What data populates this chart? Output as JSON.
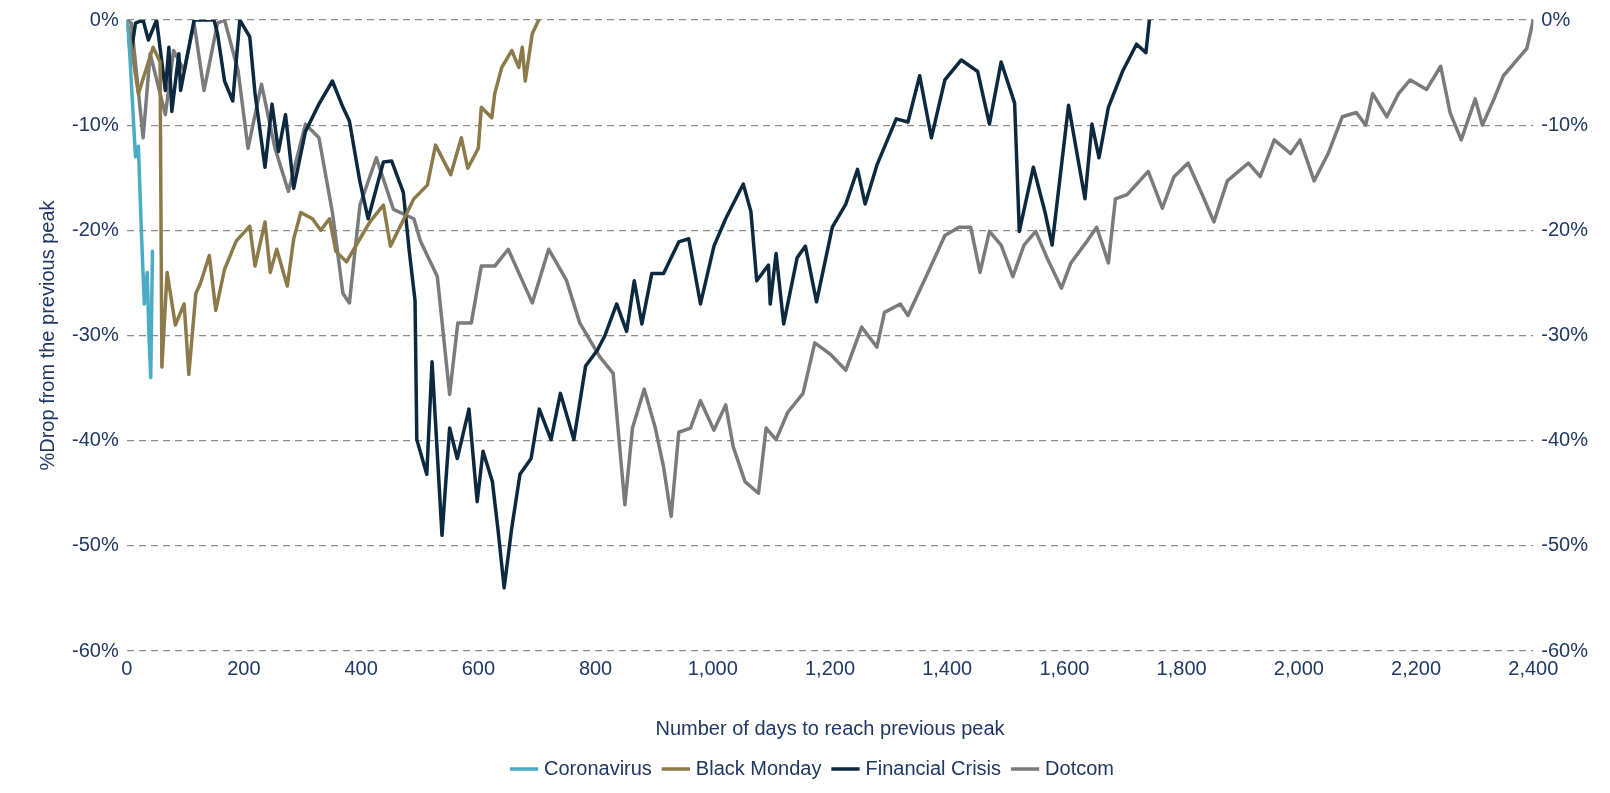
{
  "chart_data": {
    "type": "line",
    "xlabel": "Number of days to reach previous peak",
    "ylabel": "%Drop from the previous peak",
    "xlim": [
      0,
      2400
    ],
    "xticks": [
      0,
      200,
      400,
      600,
      800,
      {
        "value": 1000,
        "label": "1,000"
      },
      {
        "value": 1200,
        "label": "1,200"
      },
      {
        "value": 1400,
        "label": "1,400"
      },
      {
        "value": 1600,
        "label": "1,600"
      },
      {
        "value": 1800,
        "label": "1,800"
      },
      {
        "value": 2000,
        "label": "2,000"
      },
      {
        "value": 2200,
        "label": "2,200"
      },
      {
        "value": 2400,
        "label": "2,400"
      }
    ],
    "ylim": [
      -60,
      0
    ],
    "yticks": [
      {
        "value": 0,
        "label": "0%"
      },
      {
        "value": -10,
        "label": "-10%"
      },
      {
        "value": -20,
        "label": "-20%"
      },
      {
        "value": -30,
        "label": "-30%"
      },
      {
        "value": -40,
        "label": "-40%"
      },
      {
        "value": -50,
        "label": "-50%"
      },
      {
        "value": -60,
        "label": "-60%"
      }
    ],
    "y2lim": [
      -60,
      0
    ],
    "y2ticks": [
      {
        "value": 0,
        "label": "0%"
      },
      {
        "value": -10,
        "label": "-10%"
      },
      {
        "value": -20,
        "label": "-20%"
      },
      {
        "value": -30,
        "label": "-30%"
      },
      {
        "value": -40,
        "label": "-40%"
      },
      {
        "value": -50,
        "label": "-50%"
      },
      {
        "value": -60,
        "label": "-60%"
      }
    ],
    "grid": "y",
    "legend": "bottom",
    "marker": "none",
    "line_style": "solid",
    "series": [
      {
        "name": "Coronavirus",
        "color": "#4bacc6",
        "x": [
          0,
          5,
          10,
          15,
          20,
          25,
          30,
          35,
          38,
          41,
          44
        ],
        "values": [
          0,
          -3,
          -8,
          -13,
          -12,
          -20,
          -27,
          -24,
          -30,
          -34,
          -22
        ]
      },
      {
        "name": "Black Monday",
        "color": "#8c7a4a",
        "x": [
          0,
          8,
          20,
          45,
          57,
          60,
          69,
          83,
          98,
          106,
          118,
          126,
          141,
          152,
          167,
          187,
          210,
          219,
          236,
          245,
          256,
          274,
          285,
          297,
          317,
          331,
          346,
          357,
          375,
          398,
          415,
          438,
          450,
          490,
          513,
          527,
          553,
          571,
          582,
          600,
          605,
          623,
          628,
          640,
          657,
          669,
          675,
          680,
          692,
          703
        ],
        "values": [
          0,
          -2.6,
          -7,
          -2.6,
          -4,
          -33,
          -24,
          -29,
          -27,
          -33.7,
          -26,
          -25,
          -22.4,
          -27.6,
          -23.7,
          -21,
          -19.6,
          -23.4,
          -19.2,
          -24,
          -21.8,
          -25.3,
          -20.8,
          -18.3,
          -18.9,
          -20,
          -18.9,
          -22,
          -23,
          -20.8,
          -19.2,
          -17.6,
          -21.5,
          -17,
          -15.7,
          -11.9,
          -14.7,
          -11.2,
          -14.1,
          -12.2,
          -8.3,
          -9.3,
          -7,
          -4.5,
          -2.9,
          -4.5,
          -2.6,
          -5.8,
          -1.3,
          0
        ]
      },
      {
        "name": "Financial Crisis",
        "color": "#0d2940",
        "x": [
          0,
          8,
          15,
          28,
          37,
          51,
          66,
          72,
          77,
          89,
          92,
          115,
          149,
          155,
          167,
          181,
          193,
          210,
          219,
          236,
          248,
          259,
          271,
          285,
          305,
          328,
          351,
          369,
          380,
          398,
          412,
          438,
          452,
          472,
          482,
          492,
          495,
          512,
          521,
          538,
          551,
          564,
          584,
          598,
          608,
          624,
          634,
          644,
          657,
          671,
          690,
          704,
          724,
          740,
          763,
          783,
          803,
          816,
          836,
          853,
          866,
          879,
          896,
          916,
          942,
          959,
          979,
          1002,
          1022,
          1052,
          1065,
          1075,
          1095,
          1098,
          1108,
          1121,
          1144,
          1158,
          1177,
          1204,
          1227,
          1247,
          1260,
          1280,
          1313,
          1333,
          1353,
          1373,
          1396,
          1424,
          1452,
          1472,
          1492,
          1515,
          1523,
          1547,
          1567,
          1579,
          1607,
          1635,
          1647,
          1659,
          1675,
          1699,
          1723,
          1739,
          1745
        ],
        "values": [
          0,
          -3,
          -0.3,
          0,
          -1.9,
          0,
          -6.7,
          -2.6,
          -8.7,
          -3.2,
          -6.7,
          0,
          0,
          -1.3,
          -5.8,
          -7.7,
          0,
          -1.6,
          -7,
          -14,
          -8,
          -12.5,
          -9,
          -16,
          -10.6,
          -8,
          -5.8,
          -8.3,
          -9.6,
          -15.4,
          -18.9,
          -13.5,
          -13.4,
          -16.4,
          -21.9,
          -26.7,
          -39.9,
          -43.2,
          -32.5,
          -49,
          -38.8,
          -41.7,
          -37,
          -45.8,
          -41,
          -43.9,
          -48.7,
          -54,
          -48.3,
          -43.2,
          -41.7,
          -37,
          -39.9,
          -35.5,
          -39.9,
          -32.9,
          -31.4,
          -30,
          -27,
          -29.6,
          -24.8,
          -28.9,
          -24.1,
          -24.1,
          -21.1,
          -20.8,
          -27,
          -21.5,
          -18.9,
          -15.6,
          -18.2,
          -24.8,
          -23.3,
          -27,
          -22.2,
          -28.9,
          -22.6,
          -21.5,
          -26.8,
          -19.7,
          -17.5,
          -14.2,
          -17.5,
          -13.8,
          -9.4,
          -9.7,
          -5.3,
          -11.2,
          -5.7,
          -3.8,
          -4.9,
          -9.9,
          -4,
          -7.9,
          -20.1,
          -14,
          -18.3,
          -21.4,
          -8.1,
          -17,
          -9.9,
          -13.1,
          -8.3,
          -4.9,
          -2.3,
          -3.1,
          0
        ]
      },
      {
        "name": "Dotcom",
        "color": "#7a7b7e",
        "x": [
          0,
          8,
          28,
          40,
          66,
          80,
          98,
          115,
          132,
          155,
          167,
          190,
          207,
          230,
          253,
          276,
          305,
          328,
          351,
          369,
          380,
          398,
          426,
          455,
          490,
          501,
          530,
          551,
          565,
          588,
          605,
          628,
          651,
          692,
          720,
          750,
          773,
          807,
          830,
          850,
          863,
          883,
          902,
          916,
          929,
          942,
          962,
          979,
          1002,
          1022,
          1035,
          1055,
          1078,
          1091,
          1108,
          1128,
          1154,
          1174,
          1201,
          1227,
          1254,
          1280,
          1293,
          1320,
          1333,
          1364,
          1396,
          1420,
          1440,
          1456,
          1472,
          1492,
          1512,
          1531,
          1551,
          1571,
          1595,
          1611,
          1639,
          1655,
          1675,
          1687,
          1707,
          1743,
          1767,
          1787,
          1811,
          1835,
          1855,
          1878,
          1914,
          1934,
          1958,
          1986,
          2002,
          2026,
          2050,
          2074,
          2098,
          2114,
          2126,
          2150,
          2170,
          2190,
          2218,
          2242,
          2258,
          2277,
          2301,
          2313,
          2333,
          2349,
          2369,
          2389,
          2400
        ],
        "values": [
          0,
          -0.3,
          -11.2,
          -3.2,
          -9,
          -2.9,
          -4.8,
          -0.3,
          -6.7,
          -0.3,
          0,
          -4.8,
          -12.2,
          -6.1,
          -12.2,
          -16.3,
          -9.9,
          -11.2,
          -18.3,
          -26,
          -26.9,
          -17.6,
          -13.1,
          -18,
          -18.9,
          -21,
          -24.4,
          -35.6,
          -28.8,
          -28.8,
          -23.4,
          -23.4,
          -21.8,
          -26.9,
          -21.8,
          -24.7,
          -28.8,
          -32,
          -33.6,
          -46.1,
          -38.8,
          -35.1,
          -38.8,
          -42.5,
          -47.2,
          -39.2,
          -38.8,
          -36.2,
          -39,
          -36.6,
          -40.6,
          -43.9,
          -45,
          -38.8,
          -39.9,
          -37.3,
          -35.5,
          -30.7,
          -31.8,
          -33.3,
          -29.2,
          -31.1,
          -27.8,
          -27,
          -28.1,
          -24.4,
          -20.5,
          -19.7,
          -19.7,
          -24,
          -20.1,
          -21.4,
          -24.4,
          -21.4,
          -20.1,
          -22.7,
          -25.5,
          -23.1,
          -21,
          -19.7,
          -23.1,
          -17,
          -16.6,
          -14.4,
          -17.9,
          -14.9,
          -13.6,
          -16.6,
          -19.2,
          -15.3,
          -13.6,
          -14.9,
          -11.4,
          -12.7,
          -11.4,
          -15.3,
          -12.7,
          -9.2,
          -8.8,
          -10,
          -7,
          -9.2,
          -7,
          -5.7,
          -6.6,
          -4.4,
          -8.8,
          -11.4,
          -7.5,
          -10,
          -7.5,
          -5.3,
          -4,
          -2.7,
          0
        ]
      }
    ]
  }
}
